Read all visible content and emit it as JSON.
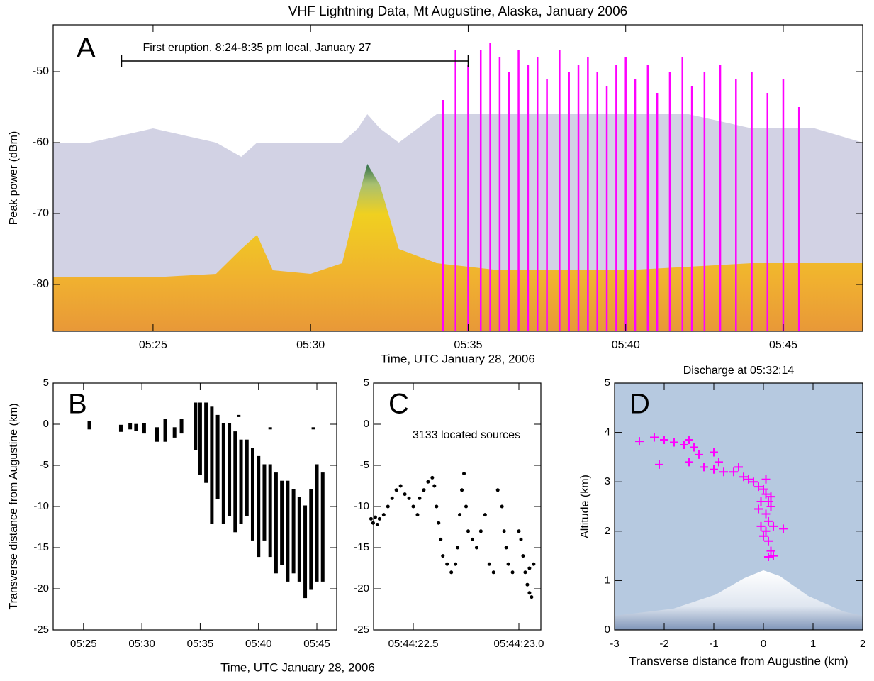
{
  "chart_data": [
    {
      "type": "area",
      "label": "A",
      "title": "VHF Lightning Data, Mt Augustine, Alaska, January 2006",
      "ylabel": "Peak power (dBm)",
      "xlabel": "Time, UTC January 28, 2006",
      "annotation": {
        "text": "First eruption, 8:24-8:35 pm local, January 27",
        "x": [
          24,
          35
        ],
        "y": -48.5
      },
      "x": [
        21.83,
        23,
        25,
        27,
        27.8,
        28.3,
        28.8,
        30,
        31,
        31.5,
        31.8,
        32.2,
        32.8,
        34,
        36,
        38,
        40,
        42,
        44,
        46,
        47.52
      ],
      "series": [
        {
          "color": "#b4b4d2",
          "values": [
            -60,
            -60,
            -58,
            -60,
            -62,
            -60,
            -60,
            -60,
            -60,
            -58,
            -56,
            -58,
            -60,
            -56,
            -56,
            -56,
            -56,
            -56,
            -58,
            -58,
            -60
          ]
        },
        {
          "color": "#e8b020",
          "values": [
            -79,
            -79,
            -79,
            -78.5,
            -75,
            -73,
            -78,
            -78.5,
            -77,
            -68,
            -63,
            -66,
            -75,
            -77,
            -78,
            -78,
            -78,
            -77.5,
            -77,
            -77,
            -77
          ]
        }
      ],
      "spikes": {
        "color": "#ff00ff",
        "x": [
          34.2,
          34.6,
          35.0,
          35.4,
          35.7,
          36.0,
          36.3,
          36.6,
          36.9,
          37.2,
          37.5,
          37.9,
          38.2,
          38.5,
          38.8,
          39.1,
          39.4,
          39.7,
          40.0,
          40.3,
          40.7,
          41.0,
          41.4,
          41.8,
          42.1,
          42.5,
          43.0,
          43.5,
          44.0,
          44.5,
          45.0,
          45.5
        ],
        "values": [
          -54,
          -47,
          -49,
          -47,
          -46,
          -48,
          -50,
          -47,
          -49,
          -48,
          -51,
          -47,
          -50,
          -49,
          -48,
          -50,
          -52,
          -49,
          -48,
          -51,
          -49,
          -53,
          -50,
          -48,
          -52,
          -50,
          -49,
          -51,
          -50,
          -53,
          -51,
          -55
        ]
      },
      "xlim": [
        21.83,
        47.52
      ],
      "ylim": [
        -86.6,
        -43.4
      ],
      "xticks": [
        {
          "value": 25,
          "label": "05:25"
        },
        {
          "value": 30,
          "label": "05:30"
        },
        {
          "value": 35,
          "label": "05:35"
        },
        {
          "value": 40,
          "label": "05:40"
        },
        {
          "value": 45,
          "label": "05:45"
        }
      ],
      "yticks": [
        -50,
        -60,
        -70,
        -80
      ]
    },
    {
      "type": "range",
      "label": "B",
      "color": "#000000",
      "ylabel": "Transverse distance from Augustine (km)",
      "xlabel": "Time, UTC January 28, 2006",
      "x": [
        25.5,
        28.2,
        29.0,
        29.5,
        30.2,
        31.3,
        32.0,
        32.8,
        33.4,
        34.6,
        35.0,
        35.5,
        36.0,
        36.5,
        37.0,
        37.5,
        38.0,
        38.3,
        38.5,
        39.0,
        39.5,
        40.0,
        40.5,
        41.0,
        41.0,
        41.5,
        42.0,
        42.5,
        43.0,
        43.5,
        44.0,
        44.5,
        44.7,
        45.0,
        45.5
      ],
      "low": [
        -0.5,
        -0.8,
        -0.5,
        -0.7,
        -1,
        -2,
        -2,
        -1.5,
        -1,
        -3,
        -6,
        -7,
        -12,
        -9,
        -12,
        -11,
        -13,
        1,
        -12,
        -11,
        -14,
        -16,
        -14,
        -16,
        -0.5,
        -18,
        -17,
        -19,
        -18,
        -19,
        -21,
        -20,
        -0.5,
        -19,
        -19
      ],
      "high": [
        0.3,
        -0.2,
        0,
        -0.1,
        0,
        -0.5,
        0.5,
        -0.5,
        0.5,
        2.5,
        2.5,
        2.5,
        2,
        1,
        0,
        0,
        -1,
        1,
        -2,
        -2,
        -3,
        -4,
        -5,
        -5,
        -0.5,
        -6,
        -7,
        -7,
        -8,
        -9,
        -10,
        -8,
        -0.5,
        -5,
        -6
      ],
      "xlim": [
        22.4,
        46.7
      ],
      "ylim": [
        -25,
        5
      ],
      "xticks": [
        {
          "value": 25,
          "label": "05:25"
        },
        {
          "value": 30,
          "label": "05:30"
        },
        {
          "value": 35,
          "label": "05:35"
        },
        {
          "value": 40,
          "label": "05:40"
        },
        {
          "value": 45,
          "label": "05:45"
        }
      ],
      "yticks": [
        5,
        0,
        -5,
        -10,
        -15,
        -20,
        -25
      ]
    },
    {
      "type": "scatter",
      "label": "C",
      "color": "#000000",
      "marker": "dot",
      "annotation": {
        "text": "3133 located sources"
      },
      "x": [
        22.3,
        22.31,
        22.32,
        22.33,
        22.34,
        22.36,
        22.38,
        22.4,
        22.42,
        22.44,
        22.46,
        22.48,
        22.5,
        22.52,
        22.53,
        22.55,
        22.57,
        22.59,
        22.6,
        22.61,
        22.62,
        22.63,
        22.64,
        22.66,
        22.68,
        22.7,
        22.71,
        22.72,
        22.73,
        22.74,
        22.75,
        22.76,
        22.78,
        22.8,
        22.82,
        22.84,
        22.86,
        22.88,
        22.9,
        22.92,
        22.93,
        22.94,
        22.95,
        22.97,
        23.0,
        23.01,
        23.02,
        23.03,
        23.04,
        23.05,
        23.06,
        23.05,
        23.07
      ],
      "values": [
        -11.5,
        -12,
        -11.3,
        -12.2,
        -11.5,
        -11,
        -10,
        -9,
        -8,
        -7.5,
        -8.5,
        -9,
        -10,
        -11,
        -9,
        -8,
        -7,
        -6.5,
        -7.5,
        -10,
        -12,
        -14,
        -16,
        -17,
        -18,
        -17,
        -15,
        -11,
        -8,
        -6,
        -10,
        -13,
        -14,
        -15,
        -13,
        -11,
        -17,
        -18,
        -8,
        -10,
        -13,
        -15,
        -17,
        -18,
        -13,
        -14,
        -16,
        -18,
        -19.5,
        -20.5,
        -21,
        -17.5,
        -17
      ],
      "xlim": [
        22.312,
        23.104
      ],
      "ylim": [
        -25,
        5
      ],
      "xticks": [
        {
          "value": 22.5,
          "label": "05:44:22.5"
        },
        {
          "value": 23.0,
          "label": "05:44:23.0"
        }
      ],
      "yticks": [
        5,
        0,
        -5,
        -10,
        -15,
        -20,
        -25
      ]
    },
    {
      "type": "scatter",
      "label": "D",
      "color": "#ff00ff",
      "marker": "plus",
      "title": "Discharge at 05:32:14",
      "ylabel": "Altitude (km)",
      "xlabel": "Transverse distance from Augustine (km)",
      "x": [
        -2.5,
        -2.2,
        -2.0,
        -1.8,
        -1.6,
        -1.4,
        -1.3,
        -1.5,
        -2.1,
        -1.2,
        -1.0,
        -0.8,
        -0.6,
        -0.4,
        -0.3,
        -0.2,
        -0.1,
        0.0,
        0.05,
        -0.05,
        0.1,
        0.15,
        -0.1,
        0.05,
        0.1,
        -0.05,
        0.2,
        0.4,
        0.05,
        0.0,
        0.1,
        0.15,
        0.1,
        0.2,
        -1.5,
        -1.0,
        -0.9,
        -0.5,
        0.05,
        0.15
      ],
      "values": [
        3.82,
        3.9,
        3.85,
        3.8,
        3.75,
        3.7,
        3.55,
        3.4,
        3.35,
        3.3,
        3.25,
        3.2,
        3.2,
        3.1,
        3.05,
        3.0,
        2.9,
        2.85,
        2.75,
        2.6,
        2.6,
        2.5,
        2.45,
        2.35,
        2.2,
        2.1,
        2.1,
        2.05,
        2.0,
        1.9,
        1.8,
        1.6,
        1.48,
        1.5,
        3.85,
        3.6,
        3.4,
        3.3,
        3.05,
        2.7
      ],
      "xlim": [
        -3,
        2
      ],
      "ylim": [
        0,
        5
      ],
      "xticks": [
        -3,
        -2,
        -1,
        0,
        1,
        2
      ],
      "yticks": [
        0,
        1,
        2,
        3,
        4,
        5
      ]
    }
  ]
}
